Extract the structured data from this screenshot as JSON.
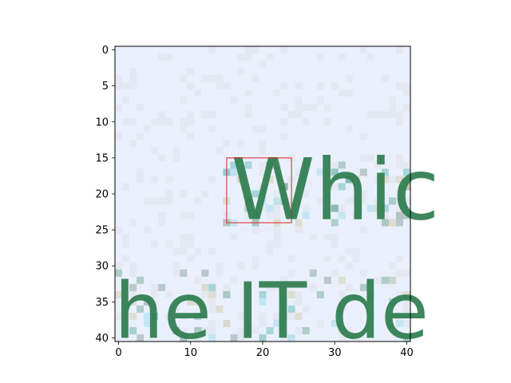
{
  "viewer": {
    "image_shown": {
      "pixel_grid": [
        41,
        41
      ],
      "visible_text_rows": [
        "Whic",
        "he IT de"
      ],
      "colors": {
        "background": "#eaf0fb",
        "background_alt": "#e4e8f2",
        "stroke_dark": "#2e7d4f",
        "stroke_mid": "#3f8a6a",
        "stroke_gray": "#5f7f6f",
        "accent_teal": "#2aa39a",
        "accent_cyan": "#7fd3e8",
        "accent_tan": "#c9b98a"
      }
    },
    "axes": {
      "x_ticks": [
        "0",
        "10",
        "20",
        "30",
        "40"
      ],
      "y_ticks": [
        "0",
        "5",
        "10",
        "15",
        "20",
        "25",
        "30",
        "35",
        "40"
      ],
      "x_range": [
        -0.5,
        40.5
      ],
      "y_range": [
        40.5,
        -0.5
      ]
    },
    "highlight_box": {
      "color": "#e02020",
      "x": [
        15,
        24
      ],
      "y": [
        15,
        24
      ]
    }
  }
}
